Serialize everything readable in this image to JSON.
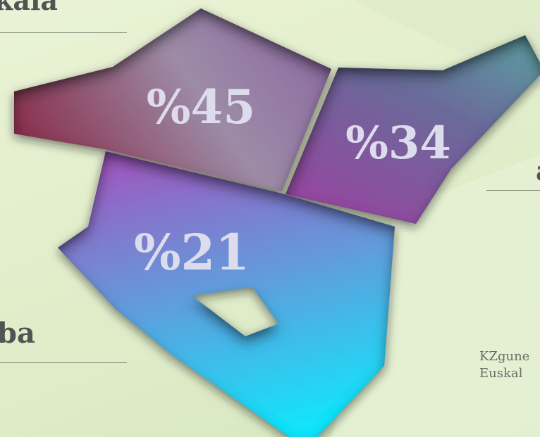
{
  "map": {
    "regions": [
      {
        "id": "bizkaia",
        "label": "Bizkaia",
        "share_text": "%45",
        "share": 45,
        "colors": [
          "#8c3a55",
          "#9b8ca8",
          "#8a6a9e"
        ]
      },
      {
        "id": "gipuzkoa",
        "label": "Gipuzkoa",
        "share_text": "%34",
        "share": 34,
        "colors": [
          "#5a8d94",
          "#9a4fa0",
          "#4a6aa8"
        ]
      },
      {
        "id": "araba",
        "label": "Araba",
        "share_text": "%21",
        "share": 21,
        "colors": [
          "#9a5fbf",
          "#5fa0dc",
          "#1ee0f8"
        ]
      }
    ],
    "visible_labels": {
      "bizkaia": "kaia",
      "araba": "ba",
      "gipuzkoa": "a"
    },
    "source_lines": [
      "KZgune",
      "Euskal"
    ]
  }
}
